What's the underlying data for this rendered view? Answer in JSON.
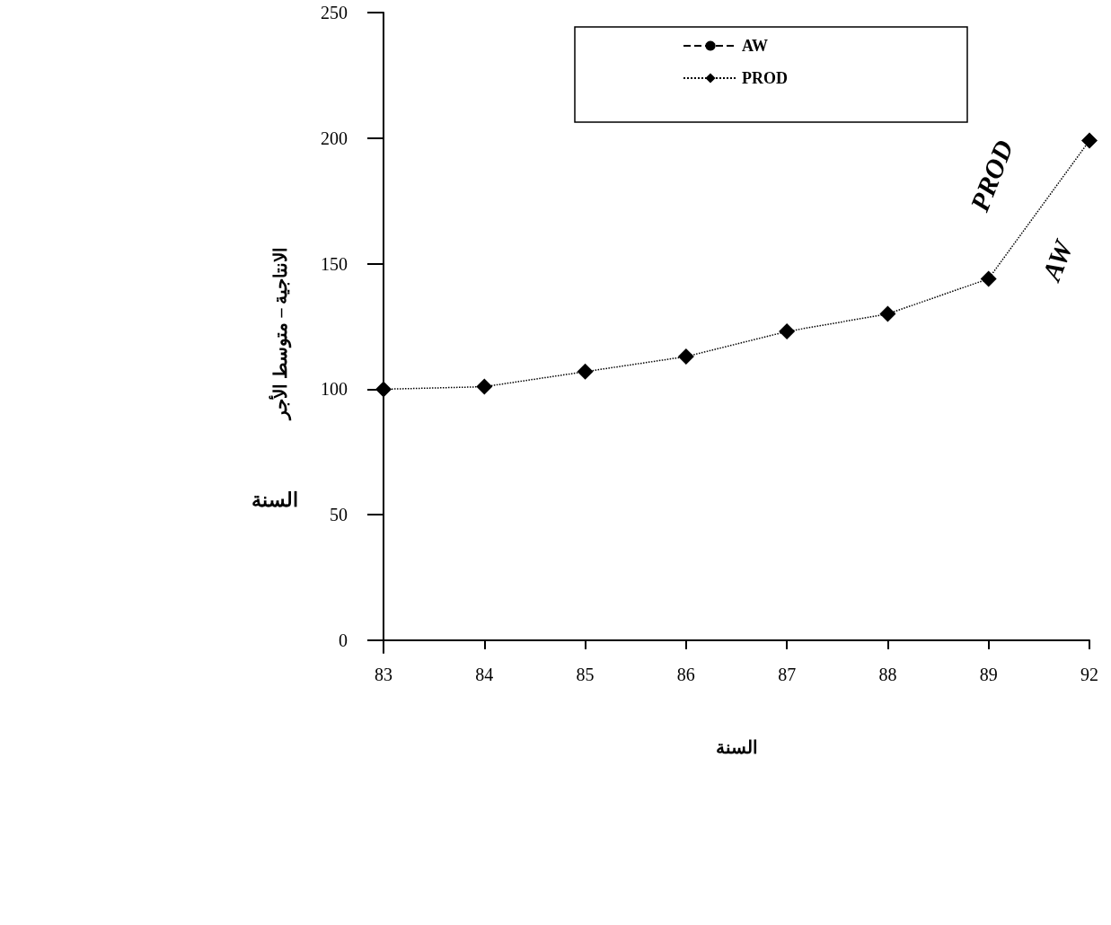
{
  "chart_data": {
    "type": "line",
    "xlabel": "السنة",
    "ylabel": "الانتاجية – متوسط الأجر",
    "categories": [
      "83",
      "84",
      "85",
      "86",
      "87",
      "88",
      "89",
      "92"
    ],
    "series": [
      {
        "name": "AW",
        "color": "#000000",
        "marker": "circle",
        "line_style": "dashed",
        "values": [
          null,
          null,
          null,
          null,
          null,
          null,
          null,
          null
        ]
      },
      {
        "name": "PROD",
        "color": "#000000",
        "marker": "diamond",
        "line_style": "dotted",
        "values": [
          100,
          101,
          107,
          113,
          123,
          130,
          144,
          199
        ]
      }
    ],
    "ylim": [
      -5,
      250
    ],
    "yticks": [
      0,
      50,
      100,
      150,
      200,
      250
    ],
    "grid": false,
    "legend": "top",
    "annotations": [
      "PROD",
      "AW",
      "السنة"
    ]
  }
}
